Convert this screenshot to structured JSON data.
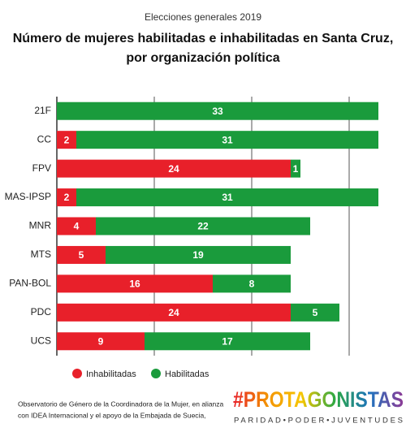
{
  "chart_data": {
    "type": "stacked-barh",
    "subtitle": "Elecciones generales 2019",
    "title": [
      "Número de mujeres habilitadas e inhabilitadas en Santa Cruz,",
      "por organización política"
    ],
    "categories": [
      "21F",
      "CC",
      "FPV",
      "MAS-IPSP",
      "MNR",
      "MTS",
      "PAN-BOL",
      "PDC",
      "UCS"
    ],
    "series": [
      {
        "name": "Inhabilitadas",
        "color": "#e8202a",
        "values": [
          null,
          2,
          24,
          2,
          4,
          5,
          16,
          24,
          9
        ]
      },
      {
        "name": "Habilitadas",
        "color": "#1a9b3c",
        "values": [
          33,
          31,
          1,
          31,
          22,
          19,
          8,
          5,
          17
        ]
      }
    ],
    "xlim": [
      0,
      33
    ],
    "xticks": [
      0,
      10,
      20,
      30
    ],
    "grid": true
  },
  "footer": {
    "credit": [
      "Observatorio de Género de la Coordinadora de la Mujer, en alianza",
      "con IDEA Internacional y el apoyo de la Embajada de Suecia,"
    ],
    "logo": "#PROTAGONISTAS",
    "tagline": "PARIDAD•PODER•JUVENTUDES"
  }
}
